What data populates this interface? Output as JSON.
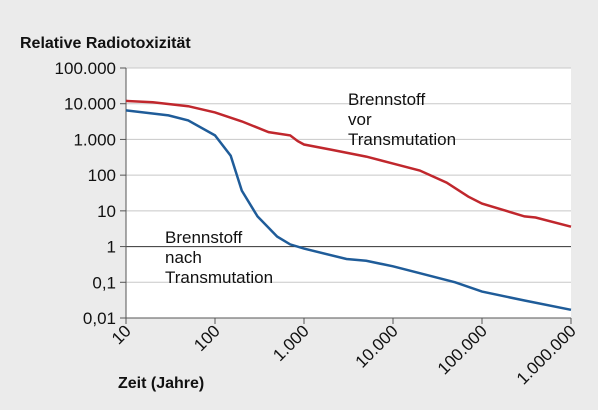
{
  "chart_data": {
    "type": "line",
    "title": "Relative Radiotoxizität",
    "xlabel": "Zeit (Jahre)",
    "xscale": "log",
    "yscale": "log",
    "grid": true,
    "xlim": [
      10,
      1000000
    ],
    "ylim": [
      0.01,
      100000
    ],
    "xticks": [
      10,
      100,
      {
        "value": 1000,
        "label": "1.000"
      },
      {
        "value": 10000,
        "label": "10.000"
      },
      {
        "value": 100000,
        "label": "100.000"
      },
      {
        "value": 1000000,
        "label": "1.000.000"
      }
    ],
    "yticks": [
      {
        "value": 0.01,
        "label": "0,01"
      },
      {
        "value": 0.1,
        "label": "0,1"
      },
      1,
      10,
      100,
      {
        "value": 1000,
        "label": "1.000"
      },
      {
        "value": 10000,
        "label": "10.000"
      },
      {
        "value": 100000,
        "label": "100.000"
      }
    ],
    "series": [
      {
        "color": "#c0272d",
        "x": [
          10,
          20,
          50,
          100,
          200,
          400,
          700,
          850,
          1000,
          2000,
          5000,
          10000,
          20000,
          40000,
          70000,
          100000,
          300000,
          400000,
          1000000
        ],
        "values": [
          12000,
          11000,
          8500,
          5700,
          3200,
          1600,
          1300,
          900,
          720,
          520,
          330,
          210,
          135,
          62,
          25,
          16,
          7,
          6.5,
          3.6
        ]
      },
      {
        "color": "#1f5c99",
        "x": [
          10,
          30,
          50,
          100,
          150,
          200,
          300,
          500,
          700,
          1000,
          3000,
          5000,
          10000,
          20000,
          50000,
          100000,
          300000,
          1000000
        ],
        "values": [
          6500,
          4700,
          3400,
          1300,
          350,
          37,
          7,
          1.9,
          1.15,
          0.88,
          0.45,
          0.4,
          0.28,
          0.18,
          0.1,
          0.055,
          0.031,
          0.017
        ]
      }
    ],
    "annotations": [
      [
        "Brennstoff",
        "vor",
        "Transmutation"
      ],
      [
        "Brennstoff",
        "nach",
        "Transmutation"
      ]
    ]
  }
}
